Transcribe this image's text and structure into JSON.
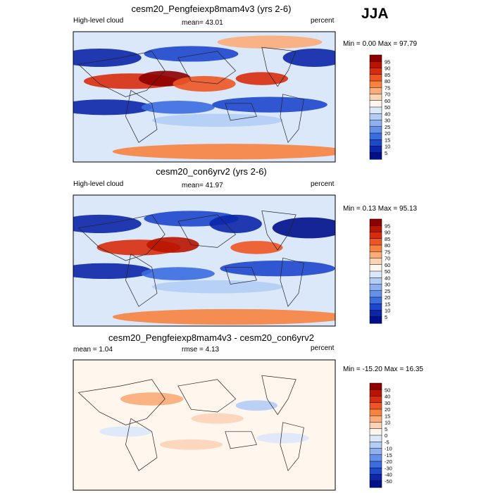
{
  "season": "JJA",
  "chart_data": [
    {
      "type": "heatmap",
      "title": "cesm20_Pengfeiexp8mam4v3 (yrs 2-6)",
      "left_label": "High-level cloud",
      "center_label": "mean=  43.01",
      "right_label": "percent",
      "minmax": "Min =   0.00 Max =  97.79",
      "mean": 43.01,
      "min": 0.0,
      "max": 97.79,
      "colorbar": {
        "labels": [
          "95",
          "90",
          "85",
          "80",
          "75",
          "70",
          "60",
          "50",
          "40",
          "30",
          "25",
          "20",
          "15",
          "10",
          "5"
        ],
        "colors": [
          "#8e0000",
          "#b81400",
          "#d82c0c",
          "#ee5524",
          "#f7823f",
          "#fbac78",
          "#fdd3b8",
          "#fff6ed",
          "#dbe8fa",
          "#b3cdf5",
          "#8eb0f0",
          "#6390e8",
          "#3a6de0",
          "#1d47cc",
          "#0b26a8",
          "#00108a"
        ]
      }
    },
    {
      "type": "heatmap",
      "title": "cesm20_con6yrv2 (yrs 2-6)",
      "left_label": "High-level cloud",
      "center_label": "mean=  41.97",
      "right_label": "percent",
      "minmax": "Min =   0.13 Max =  95.13",
      "mean": 41.97,
      "min": 0.13,
      "max": 95.13,
      "colorbar": {
        "labels": [
          "95",
          "90",
          "85",
          "80",
          "75",
          "70",
          "60",
          "50",
          "40",
          "30",
          "25",
          "20",
          "15",
          "10",
          "5"
        ],
        "colors": [
          "#8e0000",
          "#b81400",
          "#d82c0c",
          "#ee5524",
          "#f7823f",
          "#fbac78",
          "#fdd3b8",
          "#fff6ed",
          "#dbe8fa",
          "#b3cdf5",
          "#8eb0f0",
          "#6390e8",
          "#3a6de0",
          "#1d47cc",
          "#0b26a8",
          "#00108a"
        ]
      }
    },
    {
      "type": "heatmap",
      "title": "cesm20_Pengfeiexp8mam4v3 - cesm20_con6yrv2",
      "left_label": "mean =   1.04",
      "center_label": "rmse =   4.13",
      "right_label": "percent",
      "minmax": "Min = -15.20 Max =  16.35",
      "mean": 1.04,
      "rmse": 4.13,
      "min": -15.2,
      "max": 16.35,
      "colorbar": {
        "labels": [
          "50",
          "40",
          "30",
          "20",
          "15",
          "10",
          "5",
          "0",
          "-5",
          "-10",
          "-15",
          "-20",
          "-30",
          "-40",
          "-50"
        ],
        "colors": [
          "#8e0000",
          "#b81400",
          "#d82c0c",
          "#ee5524",
          "#f7823f",
          "#fbac78",
          "#fdd3b8",
          "#fff6ed",
          "#dbe8fa",
          "#b3cdf5",
          "#8eb0f0",
          "#6390e8",
          "#3a6de0",
          "#1d47cc",
          "#0b26a8",
          "#00108a"
        ]
      }
    }
  ]
}
